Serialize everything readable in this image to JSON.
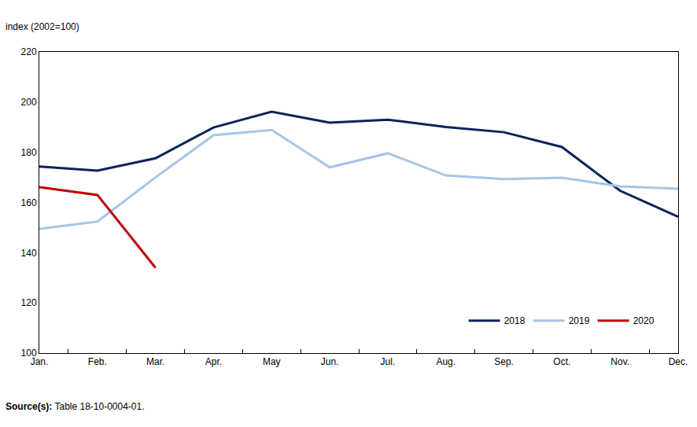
{
  "chart_data": {
    "type": "line",
    "y_label": "index (2002=100)",
    "source": {
      "label": "Source(s):",
      "text": "Table 18-10-0004-01."
    },
    "categories": [
      "Jan.",
      "Feb.",
      "Mar.",
      "Apr.",
      "May",
      "Jun.",
      "Jul.",
      "Aug.",
      "Sep.",
      "Oct.",
      "Nov.",
      "Dec."
    ],
    "series": [
      {
        "name": "2018",
        "color": "#0b2459",
        "values": [
          174.3,
          172.7,
          177.6,
          189.9,
          196.2,
          191.8,
          193.0,
          190.1,
          188.0,
          182.1,
          164.7,
          154.3
        ]
      },
      {
        "name": "2019",
        "color": "#a6c5e8",
        "values": [
          149.5,
          152.4,
          170.0,
          186.8,
          188.9,
          174.0,
          179.6,
          170.8,
          169.3,
          169.9,
          166.4,
          165.5
        ]
      },
      {
        "name": "2020",
        "color": "#c00000",
        "values": [
          166.1,
          163.0,
          134.0,
          null,
          null,
          null,
          null,
          null,
          null,
          null,
          null,
          null
        ]
      }
    ],
    "ylim": [
      100,
      220
    ],
    "yticks": [
      100,
      120,
      140,
      160,
      180,
      200,
      220
    ],
    "grid": false,
    "legend": "bottom right"
  }
}
